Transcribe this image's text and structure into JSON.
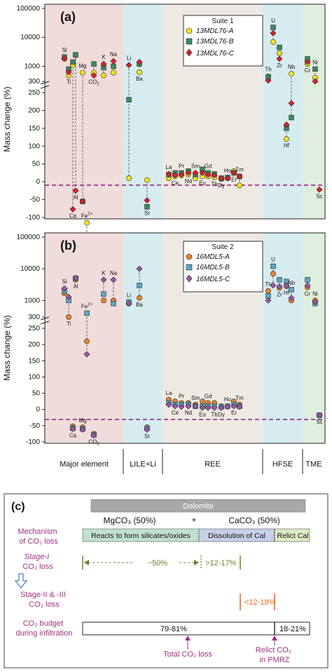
{
  "colors": {
    "major": "#f1dcdc",
    "lile": "#d7ecf1",
    "ree": "#efe9e4",
    "hfse": "#d7ecf1",
    "tme": "#dfeedd",
    "zero_line": "#8b1a7e",
    "dolomite_bar": "#a8a8a8",
    "mgco3_bar": "#c1e1d0",
    "cal_dissolution_bar": "#c7d0e8",
    "relict_cal_bar": "#dcecc5",
    "magenta_text": "#a12f86",
    "olive": "#7d7c2e",
    "orange": "#f06a1c",
    "blue_arrow": "#4a7fc4"
  },
  "shared": {
    "ylabel": "Mass change (%)",
    "groups": [
      "Major element",
      "LILE+Li",
      "REE",
      "HFSE",
      "TME"
    ],
    "yticks_upper": [
      "100000",
      "10000",
      "1000",
      "300"
    ],
    "yticks_lower": [
      "250",
      "200",
      "150",
      "100",
      "50",
      "0",
      "-50",
      "-100"
    ],
    "broken_axis_break_value": 250
  },
  "chart_data": [
    {
      "type": "scatter",
      "panel_label": "(a)",
      "legend_title": "Suite 1",
      "series": [
        {
          "name": "13MDL76-A",
          "marker": "circle",
          "color": "#f4e51c",
          "values": [
            1800,
            480,
            -115,
            2400,
            600,
            1100,
            480,
            600,
            600,
            620,
            10,
            5,
            10,
            15,
            18,
            20,
            10,
            15,
            15,
            12,
            -10,
            8,
            10,
            30,
            7000,
            2800,
            450,
            120,
            550,
            1200,
            400,
            null
          ]
        },
        {
          "name": "13MDL76-B",
          "marker": "square",
          "color": "#3b8a5f",
          "values": [
            2100,
            800,
            -250,
            2500,
            -55,
            1400,
            900,
            1200,
            1000,
            1200,
            230,
            -70,
            20,
            25,
            25,
            30,
            20,
            35,
            25,
            22,
            15,
            10,
            12,
            25,
            22000,
            4500,
            420,
            150,
            180,
            1800,
            800,
            null
          ]
        },
        {
          "name": "13MDL76-C",
          "marker": "diamond",
          "color": "#e0202a",
          "values": [
            1850,
            620,
            -270,
            -25,
            -55,
            -77,
            1200,
            480,
            1500,
            1400,
            1100,
            -52,
            22,
            18,
            20,
            25,
            25,
            25,
            20,
            18,
            15,
            10,
            10,
            25,
            14000,
            1800,
            320,
            160,
            220,
            1400,
            300,
            -22
          ]
        }
      ],
      "elements": [
        "Si",
        "Ti",
        "Fe2+",
        "Al",
        "Mg",
        "Ca",
        "K",
        "CO2",
        "Na",
        "Ba",
        "Li",
        "Sr",
        "La",
        "Ce",
        "Pr",
        "Nd",
        "Sm",
        "Eu",
        "Gd",
        "Tb",
        "Tm",
        "Dy",
        "Ho",
        "Er",
        "U",
        "Zr",
        "Th",
        "Hf",
        "Nb",
        "Cr",
        "Ni",
        "Sc"
      ]
    },
    {
      "type": "scatter",
      "panel_label": "(b)",
      "legend_title": "Suite 2",
      "series": [
        {
          "name": "16MDL5-A",
          "marker": "circle",
          "color": "#e8842c",
          "values": [
            1700,
            300,
            210,
            4500,
            -55,
            -52,
            1000,
            -75,
            1000,
            1200,
            800,
            -55,
            30,
            25,
            20,
            20,
            15,
            25,
            20,
            20,
            15,
            10,
            10,
            25,
            7000,
            2500,
            2000,
            2800,
            1000,
            2600,
            1000,
            -18
          ]
        },
        {
          "name": "16MDL5-B",
          "marker": "square",
          "color": "#5aa8c4",
          "values": [
            2000,
            1000,
            400,
            5000,
            -60,
            -58,
            1600,
            -78,
            800,
            3000,
            900,
            -58,
            20,
            15,
            15,
            15,
            10,
            10,
            10,
            10,
            10,
            8,
            10,
            15,
            12000,
            4500,
            1400,
            4000,
            2200,
            4500,
            800,
            -18
          ]
        },
        {
          "name": "16MDL5-C",
          "marker": "diamond",
          "color": "#9a5aa6",
          "values": [
            2400,
            1300,
            170,
            5200,
            -62,
            -60,
            4500,
            -80,
            4500,
            10000,
            800,
            -62,
            15,
            10,
            8,
            10,
            10,
            5,
            5,
            5,
            8,
            5,
            8,
            10,
            3000,
            2800,
            1000,
            3000,
            1200,
            3000,
            900,
            -18
          ]
        }
      ],
      "elements": [
        "Si",
        "Ti",
        "Fe2+",
        "Al",
        "Mg",
        "Ca",
        "K",
        "CO2",
        "Na",
        "Ba",
        "Li",
        "Sr",
        "La",
        "Ce",
        "Pr",
        "Nd",
        "Sm",
        "Eu",
        "Gd",
        "Tb",
        "Tm",
        "Dy",
        "Ho",
        "Er",
        "U",
        "Zr",
        "Th",
        "Hf",
        "Nb",
        "Cr",
        "Ni",
        "Sc"
      ]
    }
  ],
  "panel_c": {
    "label": "(c)",
    "dolomite": "Dolomite",
    "mgco3": "MgCO₃ (50%)",
    "plus": "+",
    "caco3": "CaCO₃ (50%)",
    "mechanism_label": "Mechanism\nof CO₂ loss",
    "bar_reacts": "Reacts to form silicates/oxides",
    "bar_dissolution": "Dissolution of Cal",
    "bar_relict": "Relict Cal",
    "stage1_label": "Stage-I\nCO₂ loss",
    "stage1_value": "~50%",
    "stage1_extra": ">12-17%",
    "stage23_label": "Stage-II & -III\nCO₂ loss",
    "stage23_value": "<12-18%",
    "budget_label": "CO₂ budget\nduring infiltration",
    "budget_left": "79-81%",
    "budget_right": "18-21%",
    "total_loss": "Total CO₂ loss",
    "relict_pmrz": "Relict CO₂\nin PMRZ"
  }
}
